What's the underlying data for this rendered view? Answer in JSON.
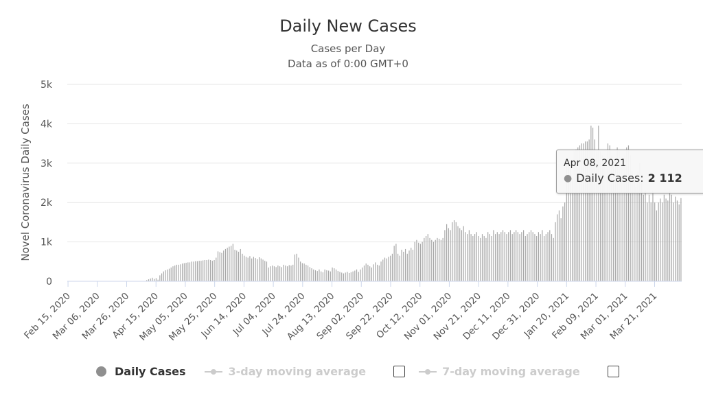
{
  "title": "Daily New Cases",
  "subtitle_line1": "Cases per Day",
  "subtitle_line2": "Data as of 0:00 GMT+0",
  "colors": {
    "bars": "#a6a6a6",
    "legend_active": "#8f8f8f",
    "legend_inactive": "#cccccc",
    "grid": "#e6e6e6"
  },
  "legend": {
    "daily_cases": "Daily Cases",
    "avg3": "3-day moving average",
    "avg7": "7-day moving average"
  },
  "tooltip": {
    "date": "Apr 08, 2021",
    "label": "Daily Cases:",
    "value": "2 112"
  },
  "chart_data": {
    "type": "bar",
    "ylabel": "Novel Coronavirus Daily Cases",
    "ylim": [
      0,
      5000
    ],
    "yticks": [
      0,
      1000,
      2000,
      3000,
      4000,
      5000
    ],
    "ytick_labels": [
      "0",
      "1k",
      "2k",
      "3k",
      "4k",
      "5k"
    ],
    "xtick_labels": [
      "Feb 15, 2020",
      "Mar 06, 2020",
      "Mar 26, 2020",
      "Apr 15, 2020",
      "May 05, 2020",
      "May 25, 2020",
      "Jun 14, 2020",
      "Jul 04, 2020",
      "Jul 24, 2020",
      "Aug 13, 2020",
      "Sep 02, 2020",
      "Sep 22, 2020",
      "Oct 12, 2020",
      "Nov 01, 2020",
      "Nov 21, 2020",
      "Dec 11, 2020",
      "Dec 31, 2020",
      "Jan 20, 2021",
      "Feb 09, 2021",
      "Mar 01, 2021",
      "Mar 21, 2021"
    ],
    "grid": true,
    "legend_position": "bottom",
    "series": [
      {
        "name": "Daily Cases",
        "start_date": "2020-02-15",
        "end_date": "2021-04-08",
        "values": [
          0,
          0,
          0,
          0,
          0,
          0,
          0,
          0,
          0,
          0,
          0,
          0,
          0,
          0,
          0,
          0,
          0,
          0,
          0,
          0,
          0,
          0,
          0,
          0,
          0,
          0,
          0,
          0,
          0,
          0,
          0,
          0,
          0,
          0,
          0,
          0,
          0,
          0,
          0,
          0,
          0,
          0,
          30,
          50,
          70,
          90,
          60,
          80,
          40,
          150,
          200,
          250,
          280,
          300,
          320,
          350,
          380,
          400,
          420,
          420,
          430,
          450,
          460,
          470,
          480,
          480,
          500,
          500,
          510,
          510,
          520,
          520,
          530,
          540,
          540,
          550,
          540,
          520,
          540,
          600,
          760,
          740,
          720,
          780,
          820,
          850,
          880,
          900,
          950,
          800,
          780,
          750,
          820,
          700,
          650,
          620,
          600,
          640,
          580,
          620,
          590,
          560,
          610,
          580,
          550,
          520,
          500,
          350,
          380,
          400,
          380,
          360,
          400,
          380,
          360,
          420,
          400,
          380,
          410,
          400,
          420,
          680,
          700,
          600,
          500,
          460,
          450,
          420,
          400,
          360,
          330,
          300,
          280,
          260,
          300,
          250,
          230,
          300,
          280,
          270,
          250,
          350,
          330,
          300,
          260,
          240,
          220,
          200,
          220,
          240,
          210,
          230,
          250,
          270,
          300,
          240,
          300,
          350,
          400,
          450,
          420,
          380,
          350,
          430,
          480,
          420,
          400,
          500,
          550,
          600,
          580,
          620,
          650,
          700,
          900,
          950,
          700,
          650,
          800,
          750,
          820,
          700,
          780,
          850,
          800,
          1000,
          1050,
          980,
          950,
          1000,
          1100,
          1150,
          1200,
          1100,
          1050,
          1000,
          1050,
          1100,
          1080,
          1050,
          1100,
          1300,
          1450,
          1350,
          1300,
          1500,
          1550,
          1500,
          1400,
          1350,
          1300,
          1400,
          1250,
          1200,
          1300,
          1200,
          1150,
          1200,
          1250,
          1150,
          1100,
          1200,
          1150,
          1100,
          1250,
          1200,
          1150,
          1300,
          1200,
          1250,
          1200,
          1250,
          1300,
          1250,
          1200,
          1250,
          1300,
          1200,
          1250,
          1300,
          1250,
          1200,
          1250,
          1300,
          1150,
          1200,
          1250,
          1300,
          1250,
          1200,
          1150,
          1250,
          1200,
          1300,
          1150,
          1200,
          1250,
          1300,
          1200,
          1100,
          1500,
          1700,
          1800,
          1600,
          1900,
          2000,
          3000,
          2950,
          2900,
          2600,
          3300,
          3350,
          3400,
          3450,
          3500,
          3500,
          3550,
          3550,
          3600,
          3950,
          3900,
          3600,
          3300,
          3950,
          3300,
          3200,
          3100,
          3000,
          3500,
          3450,
          3200,
          3000,
          3100,
          3400,
          3300,
          2900,
          3000,
          3200,
          3400,
          3450,
          3200,
          2800,
          2600,
          2400,
          2800,
          3000,
          2500,
          2200,
          2300,
          2000,
          2200,
          2000,
          2300,
          2000,
          1800,
          2000,
          2100,
          2000,
          2200,
          2100,
          2050,
          2300,
          2200,
          2000,
          2150,
          2050,
          1950,
          2112
        ]
      }
    ]
  }
}
